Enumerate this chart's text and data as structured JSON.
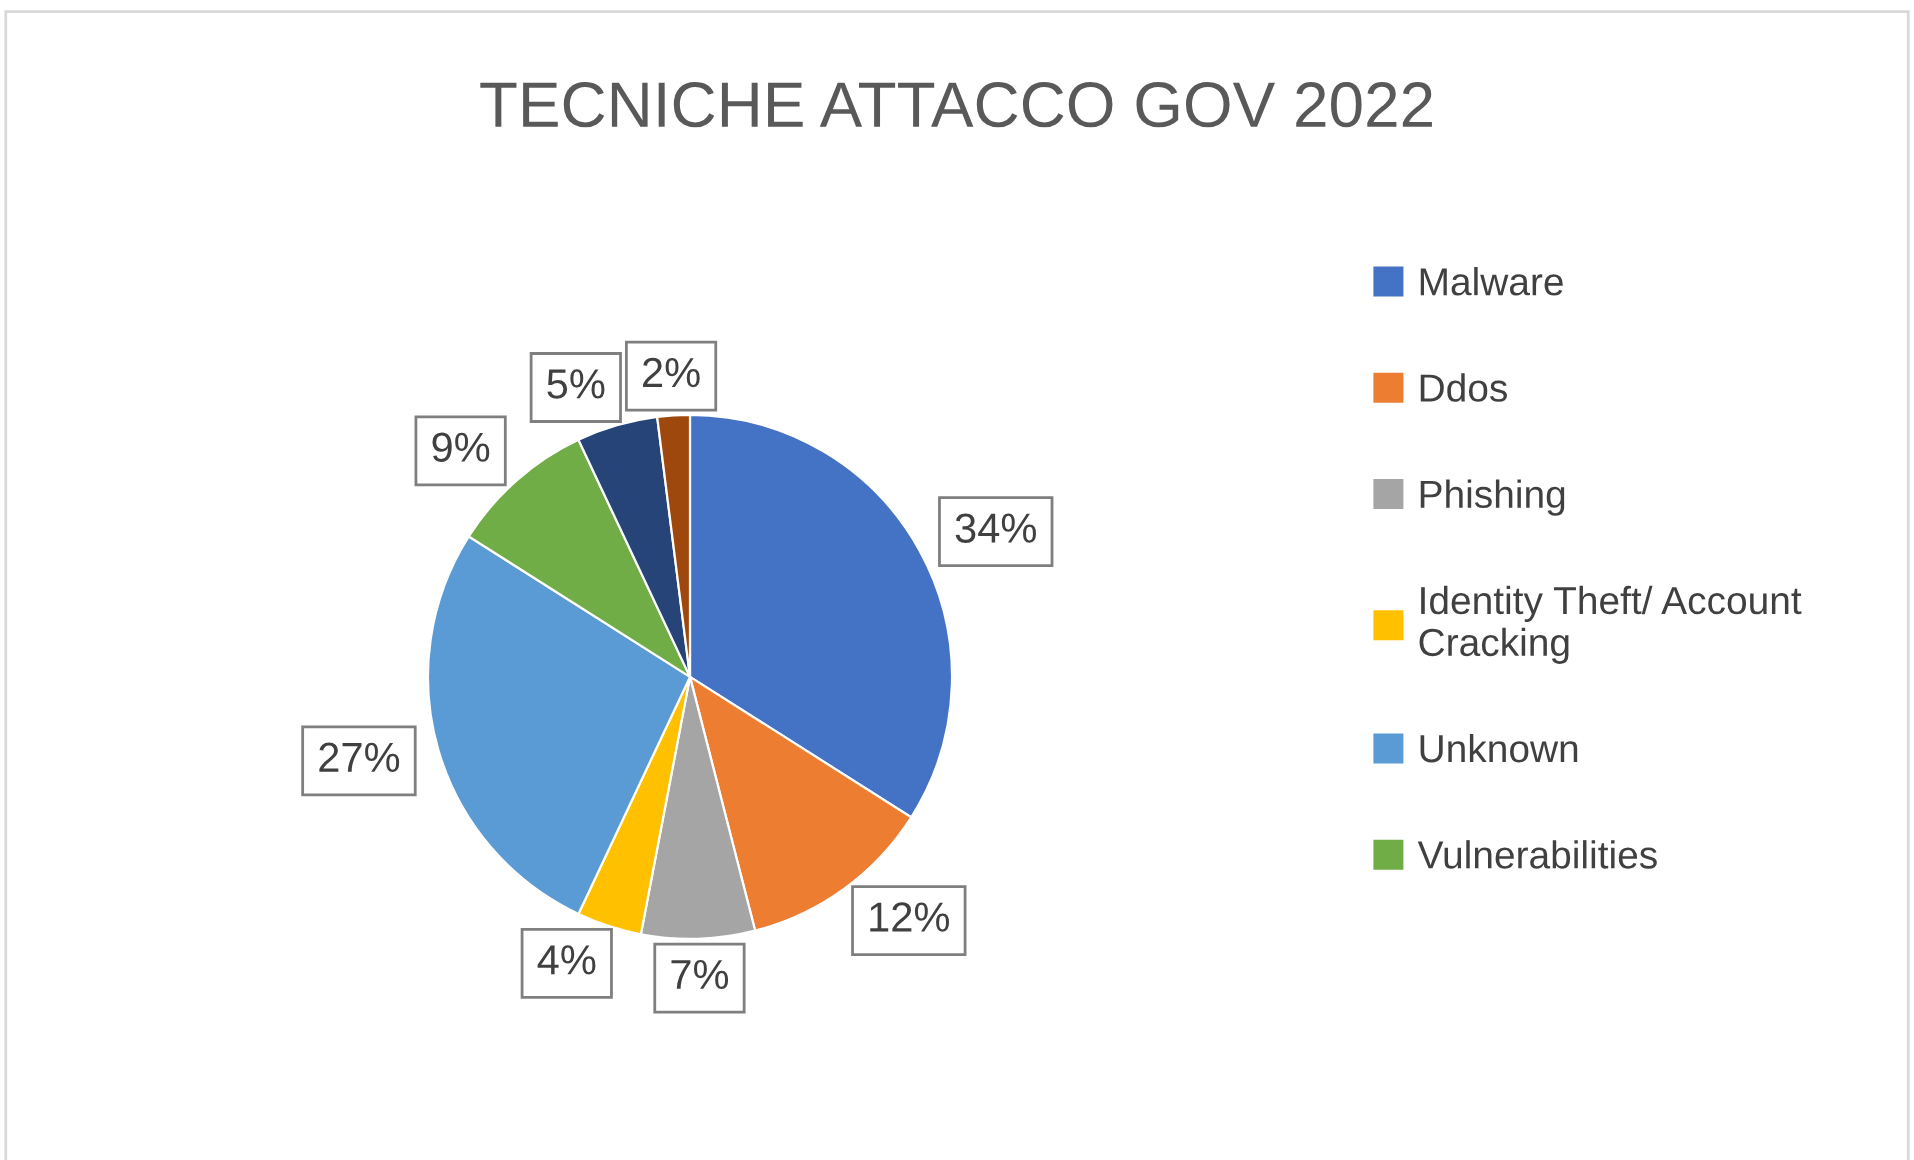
{
  "chart_data": {
    "type": "pie",
    "title": "TECNICHE ATTACCO GOV 2022",
    "categories": [
      "Malware",
      "Ddos",
      "Phishing",
      "Identity Theft/ Account\nCracking",
      "Unknown",
      "Vulnerabilities",
      null,
      null
    ],
    "values": [
      34,
      12,
      7,
      4,
      27,
      9,
      5,
      2
    ],
    "value_labels": [
      "34%",
      "12%",
      "7%",
      "4%",
      "27%",
      "9%",
      "5%",
      "2%"
    ],
    "colors": [
      "#4472c4",
      "#ed7d31",
      "#a5a5a5",
      "#ffc000",
      "#5b9bd5",
      "#70ad47",
      "#264478",
      "#9e480e"
    ],
    "legend": "right"
  }
}
